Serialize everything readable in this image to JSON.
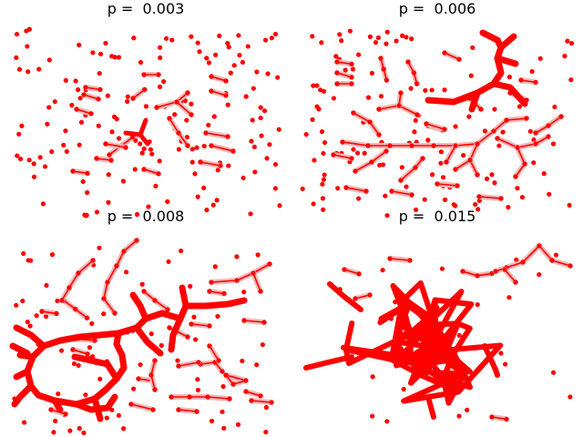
{
  "colors": {
    "node": "#ff0000",
    "edge": "#ff0000",
    "edge_halo": "#f2b8b8",
    "background": "#ffffff"
  },
  "chart_data": [
    {
      "type": "network",
      "title": "p =  0.003",
      "p": 0.003,
      "grid": false,
      "components": [
        {
          "nodes": [
            [
              0,
              0
            ],
            [
              0.05,
              0.02
            ]
          ]
        },
        {
          "nodes": [
            [
              0,
              0
            ],
            [
              0.05,
              0.01
            ]
          ]
        },
        {
          "nodes": [
            [
              0,
              0
            ],
            [
              0.05,
              0
            ]
          ]
        },
        {
          "nodes": [
            [
              0,
              0
            ],
            [
              0.05,
              0.02
            ]
          ]
        },
        {
          "nodes": [
            [
              0,
              0
            ],
            [
              0.05,
              0.02
            ]
          ]
        },
        {
          "nodes": [
            [
              0,
              0
            ],
            [
              0.04,
              -0.04
            ]
          ]
        },
        {
          "nodes": [
            [
              0,
              0
            ],
            [
              0.05,
              0.02
            ]
          ]
        },
        {
          "nodes": [
            [
              0,
              0
            ],
            [
              0.04,
              -0.04
            ],
            [
              0.08,
              -0.08
            ]
          ]
        },
        {
          "nodes": [
            [
              0,
              0
            ],
            [
              0.05,
              0.01
            ]
          ]
        },
        {
          "nodes": [
            [
              0,
              0
            ],
            [
              0.05,
              0.02
            ]
          ]
        }
      ]
    },
    {
      "type": "network",
      "title": "p =  0.006",
      "p": 0.006,
      "grid": false,
      "components": [
        {
          "nodes": [
            [
              0,
              0
            ],
            [
              0.05,
              0.01
            ]
          ]
        },
        {
          "nodes": [
            [
              0,
              0
            ],
            [
              0.05,
              0.02
            ]
          ]
        },
        {
          "nodes": [
            [
              0,
              0
            ],
            [
              0.05,
              0
            ]
          ]
        },
        {
          "nodes": [
            [
              0,
              0
            ],
            [
              0.01,
              0.05
            ],
            [
              0.02,
              0.1
            ]
          ]
        },
        {
          "nodes": [
            [
              0,
              0
            ],
            [
              0.02,
              0.05
            ],
            [
              0.03,
              0.1
            ]
          ]
        },
        {
          "nodes": [
            [
              0,
              0
            ],
            [
              0.05,
              0.03
            ]
          ]
        },
        {
          "nodes": [
            [
              0,
              0
            ],
            [
              0.05,
              0.01
            ]
          ]
        },
        {
          "nodes": [
            [
              0,
              0
            ],
            [
              0.05,
              0.02
            ]
          ]
        }
      ]
    },
    {
      "type": "network",
      "title": "p =  0.008",
      "p": 0.008,
      "grid": false,
      "components": [
        {
          "nodes": [
            [
              0,
              0
            ],
            [
              0.05,
              0.01
            ]
          ]
        },
        {
          "nodes": [
            [
              0,
              0
            ],
            [
              0.04,
              0.04
            ],
            [
              0.08,
              0.08
            ]
          ]
        },
        {
          "nodes": [
            [
              0,
              0
            ],
            [
              0.05,
              0.02
            ]
          ]
        },
        {
          "nodes": [
            [
              0,
              0
            ],
            [
              0.05,
              0.01
            ]
          ]
        },
        {
          "nodes": [
            [
              0,
              0
            ],
            [
              0.05,
              0.02
            ]
          ]
        },
        {
          "nodes": [
            [
              0,
              0
            ],
            [
              0.05,
              0.01
            ]
          ]
        },
        {
          "nodes": [
            [
              0,
              0
            ],
            [
              0.05,
              0.02
            ]
          ]
        }
      ]
    },
    {
      "type": "network",
      "title": "p =  0.015",
      "p": 0.015,
      "grid": false,
      "components": [
        {
          "nodes": [
            [
              0,
              0
            ],
            [
              0.05,
              0.02
            ]
          ]
        },
        {
          "nodes": [
            [
              0,
              0
            ],
            [
              0.05,
              0.02
            ],
            [
              0.1,
              0.01
            ]
          ]
        },
        {
          "nodes": [
            [
              0,
              0
            ],
            [
              0.05,
              0.01
            ]
          ]
        }
      ]
    }
  ]
}
